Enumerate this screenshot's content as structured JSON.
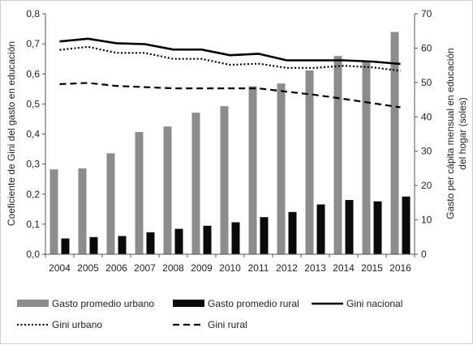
{
  "chart_data": {
    "type": "bar",
    "categories": [
      "2004",
      "2005",
      "2006",
      "2007",
      "2008",
      "2009",
      "2010",
      "2011",
      "2012",
      "2013",
      "2014",
      "2015",
      "2016"
    ],
    "ylabel": "Coeficiente de Gini del gasto en educación",
    "y2label_line1": "Gasto per cápita mensual en educación",
    "y2label_line2": "del hogar (soles)",
    "ylim": [
      0,
      0.8
    ],
    "y2lim": [
      0,
      70
    ],
    "yticks": [
      "0,0",
      "0,1",
      "0,2",
      "0,3",
      "0,4",
      "0,5",
      "0,6",
      "0,7",
      "0,8"
    ],
    "y2ticks": [
      "0",
      "10",
      "20",
      "30",
      "40",
      "50",
      "60",
      "70"
    ],
    "grid": false,
    "legend_position": "bottom",
    "series": [
      {
        "name": "Gasto promedio urbano",
        "kind": "bar",
        "axis": "right",
        "color": "#8c8c8c",
        "values": [
          24.7,
          25.0,
          29.4,
          35.6,
          37.2,
          41.2,
          43.1,
          48.9,
          49.7,
          53.5,
          57.7,
          56.2,
          64.7
        ]
      },
      {
        "name": "Gasto promedio rural",
        "kind": "bar",
        "axis": "right",
        "color": "#0a0a0a",
        "values": [
          4.6,
          5.0,
          5.3,
          6.4,
          7.4,
          8.3,
          9.3,
          10.8,
          12.3,
          14.5,
          15.8,
          15.4,
          16.8
        ]
      },
      {
        "name": "Gini nacional",
        "kind": "line",
        "style": "solid",
        "axis": "left",
        "color": "#000000",
        "values": [
          0.708,
          0.717,
          0.702,
          0.699,
          0.681,
          0.681,
          0.662,
          0.667,
          0.645,
          0.645,
          0.645,
          0.641,
          0.633
        ]
      },
      {
        "name": "Gini urbano",
        "kind": "line",
        "style": "dotted",
        "axis": "left",
        "color": "#000000",
        "values": [
          0.68,
          0.69,
          0.67,
          0.67,
          0.65,
          0.65,
          0.63,
          0.634,
          0.62,
          0.62,
          0.627,
          0.622,
          0.61
        ]
      },
      {
        "name": "Gini rural",
        "kind": "line",
        "style": "dashed",
        "axis": "left",
        "color": "#000000",
        "values": [
          0.566,
          0.57,
          0.56,
          0.556,
          0.552,
          0.552,
          0.552,
          0.552,
          0.541,
          0.53,
          0.517,
          0.503,
          0.489
        ]
      }
    ]
  }
}
